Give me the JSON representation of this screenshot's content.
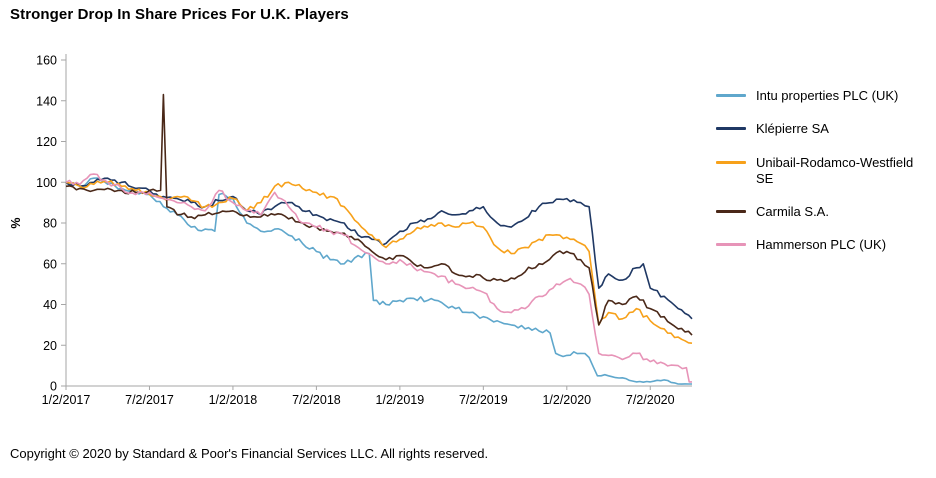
{
  "title": "Stronger Drop In Share Prices For U.K. Players",
  "footer": {
    "copyright": "Copyright © 2020 by Standard & Poor's Financial Services LLC. All rights reserved."
  },
  "chart_data": {
    "type": "line",
    "title": "Stronger Drop In Share Prices For U.K. Players",
    "xlabel": "",
    "ylabel": "%",
    "ylim": [
      0,
      160
    ],
    "xlim": [
      0,
      45
    ],
    "grid": false,
    "legend_position": "right",
    "yticks": [
      0,
      20,
      40,
      60,
      80,
      100,
      120,
      140,
      160
    ],
    "x_unit": "months since 2017-01 (index 0 = 1/2/2017)",
    "xticks": [
      {
        "index": 0,
        "label": "1/2/2017"
      },
      {
        "index": 6,
        "label": "7/2/2017"
      },
      {
        "index": 12,
        "label": "1/2/2018"
      },
      {
        "index": 18,
        "label": "7/2/2018"
      },
      {
        "index": 24,
        "label": "1/2/2019"
      },
      {
        "index": 30,
        "label": "7/2/2019"
      },
      {
        "index": 36,
        "label": "1/2/2020"
      },
      {
        "index": 42,
        "label": "7/2/2020"
      }
    ],
    "series": [
      {
        "name": "Intu properties PLC (UK)",
        "color": "#5FA7CC",
        "points": [
          [
            0,
            100
          ],
          [
            1,
            98
          ],
          [
            2,
            102
          ],
          [
            3,
            99
          ],
          [
            4,
            97
          ],
          [
            5,
            95
          ],
          [
            6,
            94
          ],
          [
            7,
            88
          ],
          [
            8,
            84
          ],
          [
            9,
            78
          ],
          [
            10,
            77
          ],
          [
            10.7,
            76
          ],
          [
            11,
            94
          ],
          [
            12,
            92
          ],
          [
            13,
            80
          ],
          [
            14,
            76
          ],
          [
            15,
            77
          ],
          [
            16,
            74
          ],
          [
            17,
            70
          ],
          [
            18,
            66
          ],
          [
            19,
            62
          ],
          [
            20,
            60
          ],
          [
            21,
            64
          ],
          [
            21.8,
            65
          ],
          [
            22.1,
            42
          ],
          [
            23,
            40
          ],
          [
            24,
            42
          ],
          [
            25,
            43
          ],
          [
            26,
            42
          ],
          [
            27,
            41
          ],
          [
            28,
            38
          ],
          [
            29,
            36
          ],
          [
            30,
            34
          ],
          [
            31,
            32
          ],
          [
            32,
            30
          ],
          [
            33,
            28
          ],
          [
            34,
            27
          ],
          [
            34.8,
            26
          ],
          [
            35.2,
            16
          ],
          [
            36,
            15
          ],
          [
            37,
            16
          ],
          [
            37.6,
            14
          ],
          [
            38.2,
            5
          ],
          [
            39,
            5
          ],
          [
            40,
            4
          ],
          [
            41,
            2
          ],
          [
            42,
            2
          ],
          [
            43,
            3
          ],
          [
            44,
            1
          ],
          [
            45,
            1
          ]
        ]
      },
      {
        "name": "Klépierre SA",
        "color": "#1F3864",
        "points": [
          [
            0,
            100
          ],
          [
            1,
            98
          ],
          [
            2,
            100
          ],
          [
            3,
            102
          ],
          [
            4,
            100
          ],
          [
            5,
            97
          ],
          [
            6,
            96
          ],
          [
            7,
            93
          ],
          [
            8,
            92
          ],
          [
            9,
            90
          ],
          [
            10,
            88
          ],
          [
            11,
            91
          ],
          [
            12,
            93
          ],
          [
            13,
            86
          ],
          [
            14,
            84
          ],
          [
            15,
            88
          ],
          [
            16,
            90
          ],
          [
            17,
            86
          ],
          [
            18,
            84
          ],
          [
            19,
            82
          ],
          [
            20,
            80
          ],
          [
            21,
            74
          ],
          [
            22,
            72
          ],
          [
            23,
            70
          ],
          [
            24,
            76
          ],
          [
            25,
            80
          ],
          [
            26,
            82
          ],
          [
            27,
            86
          ],
          [
            28,
            84
          ],
          [
            29,
            86
          ],
          [
            30,
            88
          ],
          [
            31,
            80
          ],
          [
            32,
            78
          ],
          [
            33,
            82
          ],
          [
            34,
            88
          ],
          [
            35,
            90
          ],
          [
            36,
            92
          ],
          [
            37,
            90
          ],
          [
            37.6,
            88
          ],
          [
            38.3,
            48
          ],
          [
            39,
            55
          ],
          [
            40,
            52
          ],
          [
            41,
            58
          ],
          [
            41.5,
            60
          ],
          [
            42,
            48
          ],
          [
            43,
            44
          ],
          [
            44,
            38
          ],
          [
            45,
            33
          ]
        ]
      },
      {
        "name": "Unibail-Rodamco-Westfield SE",
        "color": "#F7A11A",
        "points": [
          [
            0,
            100
          ],
          [
            1,
            98
          ],
          [
            2,
            99
          ],
          [
            3,
            100
          ],
          [
            4,
            98
          ],
          [
            5,
            96
          ],
          [
            6,
            94
          ],
          [
            7,
            92
          ],
          [
            8,
            93
          ],
          [
            9,
            91
          ],
          [
            10,
            88
          ],
          [
            11,
            90
          ],
          [
            12,
            92
          ],
          [
            13,
            86
          ],
          [
            14,
            90
          ],
          [
            15,
            98
          ],
          [
            16,
            100
          ],
          [
            17,
            97
          ],
          [
            18,
            95
          ],
          [
            19,
            93
          ],
          [
            20,
            88
          ],
          [
            21,
            80
          ],
          [
            22,
            74
          ],
          [
            23,
            68
          ],
          [
            24,
            72
          ],
          [
            25,
            76
          ],
          [
            26,
            78
          ],
          [
            27,
            80
          ],
          [
            28,
            78
          ],
          [
            29,
            80
          ],
          [
            30,
            78
          ],
          [
            31,
            68
          ],
          [
            32,
            65
          ],
          [
            33,
            68
          ],
          [
            34,
            72
          ],
          [
            35,
            74
          ],
          [
            36,
            73
          ],
          [
            37,
            70
          ],
          [
            37.6,
            66
          ],
          [
            38.3,
            30
          ],
          [
            39,
            36
          ],
          [
            40,
            33
          ],
          [
            41,
            38
          ],
          [
            42,
            32
          ],
          [
            43,
            28
          ],
          [
            44,
            24
          ],
          [
            45,
            21
          ]
        ]
      },
      {
        "name": "Carmila S.A.",
        "color": "#4A2818",
        "points": [
          [
            0,
            98
          ],
          [
            1,
            97
          ],
          [
            2,
            96
          ],
          [
            3,
            97
          ],
          [
            4,
            96
          ],
          [
            5,
            95
          ],
          [
            6,
            96
          ],
          [
            6.8,
            96
          ],
          [
            7,
            143
          ],
          [
            7.25,
            88
          ],
          [
            8,
            84
          ],
          [
            9,
            83
          ],
          [
            10,
            84
          ],
          [
            11,
            85
          ],
          [
            12,
            86
          ],
          [
            13,
            84
          ],
          [
            14,
            83
          ],
          [
            15,
            84
          ],
          [
            16,
            82
          ],
          [
            17,
            80
          ],
          [
            18,
            78
          ],
          [
            19,
            76
          ],
          [
            20,
            75
          ],
          [
            21,
            72
          ],
          [
            22,
            66
          ],
          [
            23,
            62
          ],
          [
            24,
            64
          ],
          [
            25,
            60
          ],
          [
            26,
            58
          ],
          [
            27,
            60
          ],
          [
            28,
            55
          ],
          [
            29,
            54
          ],
          [
            30,
            53
          ],
          [
            31,
            52
          ],
          [
            32,
            53
          ],
          [
            33,
            56
          ],
          [
            34,
            60
          ],
          [
            35,
            64
          ],
          [
            36,
            66
          ],
          [
            37,
            62
          ],
          [
            37.6,
            58
          ],
          [
            38.3,
            30
          ],
          [
            39,
            42
          ],
          [
            40,
            40
          ],
          [
            41,
            44
          ],
          [
            42,
            38
          ],
          [
            43,
            34
          ],
          [
            44,
            28
          ],
          [
            45,
            25
          ]
        ]
      },
      {
        "name": "Hammerson PLC (UK)",
        "color": "#E794B8",
        "points": [
          [
            0,
            100
          ],
          [
            1,
            99
          ],
          [
            2,
            104
          ],
          [
            3,
            100
          ],
          [
            4,
            97
          ],
          [
            5,
            94
          ],
          [
            6,
            95
          ],
          [
            7,
            92
          ],
          [
            8,
            90
          ],
          [
            9,
            88
          ],
          [
            10,
            86
          ],
          [
            11,
            96
          ],
          [
            12,
            90
          ],
          [
            13,
            86
          ],
          [
            14,
            84
          ],
          [
            15,
            95
          ],
          [
            16,
            88
          ],
          [
            17,
            80
          ],
          [
            18,
            78
          ],
          [
            19,
            76
          ],
          [
            20,
            74
          ],
          [
            21,
            68
          ],
          [
            22,
            64
          ],
          [
            23,
            60
          ],
          [
            24,
            62
          ],
          [
            25,
            58
          ],
          [
            26,
            56
          ],
          [
            27,
            54
          ],
          [
            28,
            50
          ],
          [
            29,
            48
          ],
          [
            30,
            46
          ],
          [
            31,
            38
          ],
          [
            32,
            36
          ],
          [
            33,
            38
          ],
          [
            34,
            44
          ],
          [
            35,
            48
          ],
          [
            36,
            52
          ],
          [
            37,
            50
          ],
          [
            37.6,
            45
          ],
          [
            38.3,
            16
          ],
          [
            39,
            15
          ],
          [
            40,
            13
          ],
          [
            41,
            16
          ],
          [
            42,
            12
          ],
          [
            43,
            11
          ],
          [
            44,
            10
          ],
          [
            44.6,
            9
          ],
          [
            44.8,
            2
          ],
          [
            45,
            2
          ]
        ]
      }
    ]
  }
}
